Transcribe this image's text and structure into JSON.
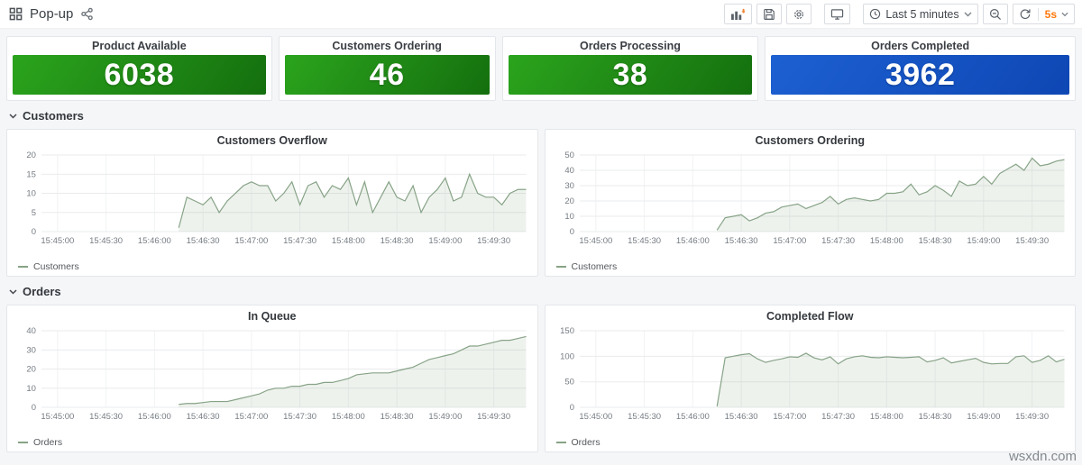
{
  "topbar": {
    "title": "Pop-up",
    "time_range_label": "Last 5 minutes",
    "refresh_interval_label": "5s",
    "accent_orange": "#ff780a",
    "icon_color": "#5a6169"
  },
  "stats": [
    {
      "title": "Product Available",
      "value": "6038",
      "bg": [
        "#2ba41d",
        "#146f0e"
      ]
    },
    {
      "title": "Customers Ordering",
      "value": "46",
      "bg": [
        "#2ba41d",
        "#146f0e"
      ]
    },
    {
      "title": "Orders Processing",
      "value": "38",
      "bg": [
        "#2ba41d",
        "#146f0e"
      ]
    },
    {
      "title": "Orders Completed",
      "value": "3962",
      "bg": [
        "#1d60d2",
        "#0e47b4"
      ]
    }
  ],
  "rows": [
    {
      "label": "Customers"
    },
    {
      "label": "Orders"
    }
  ],
  "chart_data": [
    {
      "type": "area",
      "title": "Customers Overflow",
      "ylim": [
        0,
        20
      ],
      "y_ticks": [
        0,
        5,
        10,
        15,
        20
      ],
      "x_axis_seconds": [
        0,
        300
      ],
      "x_tick_seconds": [
        10,
        40,
        70,
        100,
        130,
        160,
        190,
        220,
        250,
        280
      ],
      "x_tick_labels": [
        "15:45:00",
        "15:45:30",
        "15:46:00",
        "15:46:30",
        "15:47:00",
        "15:47:30",
        "15:48:00",
        "15:48:30",
        "15:49:00",
        "15:49:30"
      ],
      "series": [
        {
          "name": "Customers",
          "color": "#87a387",
          "fill": "rgba(134,166,128,0.14)",
          "start_second": 85,
          "step_seconds": 5,
          "values": [
            1,
            9,
            8,
            7,
            9,
            5,
            8,
            10,
            12,
            13,
            12,
            12,
            8,
            10,
            13,
            7,
            12,
            13,
            9,
            12,
            11,
            14,
            7,
            13,
            5,
            9,
            13,
            9,
            8,
            12,
            5,
            9,
            11,
            14,
            8,
            9,
            15,
            10,
            9,
            9,
            7,
            10,
            11,
            11
          ]
        }
      ]
    },
    {
      "type": "area",
      "title": "Customers Ordering",
      "ylim": [
        0,
        50
      ],
      "y_ticks": [
        0,
        10,
        20,
        30,
        40,
        50
      ],
      "x_axis_seconds": [
        0,
        300
      ],
      "x_tick_seconds": [
        10,
        40,
        70,
        100,
        130,
        160,
        190,
        220,
        250,
        280
      ],
      "x_tick_labels": [
        "15:45:00",
        "15:45:30",
        "15:46:00",
        "15:46:30",
        "15:47:00",
        "15:47:30",
        "15:48:00",
        "15:48:30",
        "15:49:00",
        "15:49:30"
      ],
      "series": [
        {
          "name": "Customers",
          "color": "#87a387",
          "fill": "rgba(134,166,128,0.14)",
          "start_second": 85,
          "step_seconds": 5,
          "values": [
            1,
            9,
            10,
            11,
            7,
            9,
            12,
            13,
            16,
            17,
            18,
            15,
            17,
            19,
            23,
            18,
            21,
            22,
            21,
            20,
            21,
            25,
            25,
            26,
            31,
            24,
            26,
            30,
            27,
            23,
            33,
            30,
            31,
            36,
            31,
            38,
            41,
            44,
            40,
            48,
            43,
            44,
            46,
            47
          ]
        }
      ]
    },
    {
      "type": "area",
      "title": "In Queue",
      "ylim": [
        0,
        40
      ],
      "y_ticks": [
        0,
        10,
        20,
        30,
        40
      ],
      "x_axis_seconds": [
        0,
        300
      ],
      "x_tick_seconds": [
        10,
        40,
        70,
        100,
        130,
        160,
        190,
        220,
        250,
        280
      ],
      "x_tick_labels": [
        "15:45:00",
        "15:45:30",
        "15:46:00",
        "15:46:30",
        "15:47:00",
        "15:47:30",
        "15:48:00",
        "15:48:30",
        "15:49:00",
        "15:49:30"
      ],
      "series": [
        {
          "name": "Orders",
          "color": "#87a387",
          "fill": "rgba(134,166,128,0.14)",
          "start_second": 85,
          "step_seconds": 5,
          "values": [
            1.5,
            2,
            2,
            2.5,
            3,
            3,
            3,
            4,
            5,
            6,
            7,
            9,
            10,
            10,
            11,
            11,
            12,
            12,
            13,
            13,
            14,
            15,
            17,
            17.5,
            18,
            18,
            18,
            19,
            20,
            21,
            23,
            25,
            26,
            27,
            28,
            30,
            32,
            32,
            33,
            34,
            35,
            35,
            36,
            37
          ]
        }
      ]
    },
    {
      "type": "area",
      "title": "Completed Flow",
      "ylim": [
        0,
        150
      ],
      "y_ticks": [
        0,
        50,
        100,
        150
      ],
      "x_axis_seconds": [
        0,
        300
      ],
      "x_tick_seconds": [
        10,
        40,
        70,
        100,
        130,
        160,
        190,
        220,
        250,
        280
      ],
      "x_tick_labels": [
        "15:45:00",
        "15:45:30",
        "15:46:00",
        "15:46:30",
        "15:47:00",
        "15:47:30",
        "15:48:00",
        "15:48:30",
        "15:49:00",
        "15:49:30"
      ],
      "series": [
        {
          "name": "Orders",
          "color": "#87a387",
          "fill": "rgba(134,166,128,0.14)",
          "start_second": 85,
          "step_seconds": 5,
          "values": [
            2,
            97,
            100,
            103,
            105,
            95,
            88,
            92,
            95,
            99,
            98,
            106,
            97,
            93,
            99,
            85,
            95,
            99,
            101,
            98,
            97,
            99,
            98,
            97,
            98,
            99,
            89,
            92,
            97,
            87,
            90,
            93,
            96,
            88,
            85,
            86,
            86,
            99,
            101,
            88,
            92,
            101,
            89,
            94
          ]
        }
      ]
    }
  ],
  "watermark": "wsxdn.com"
}
